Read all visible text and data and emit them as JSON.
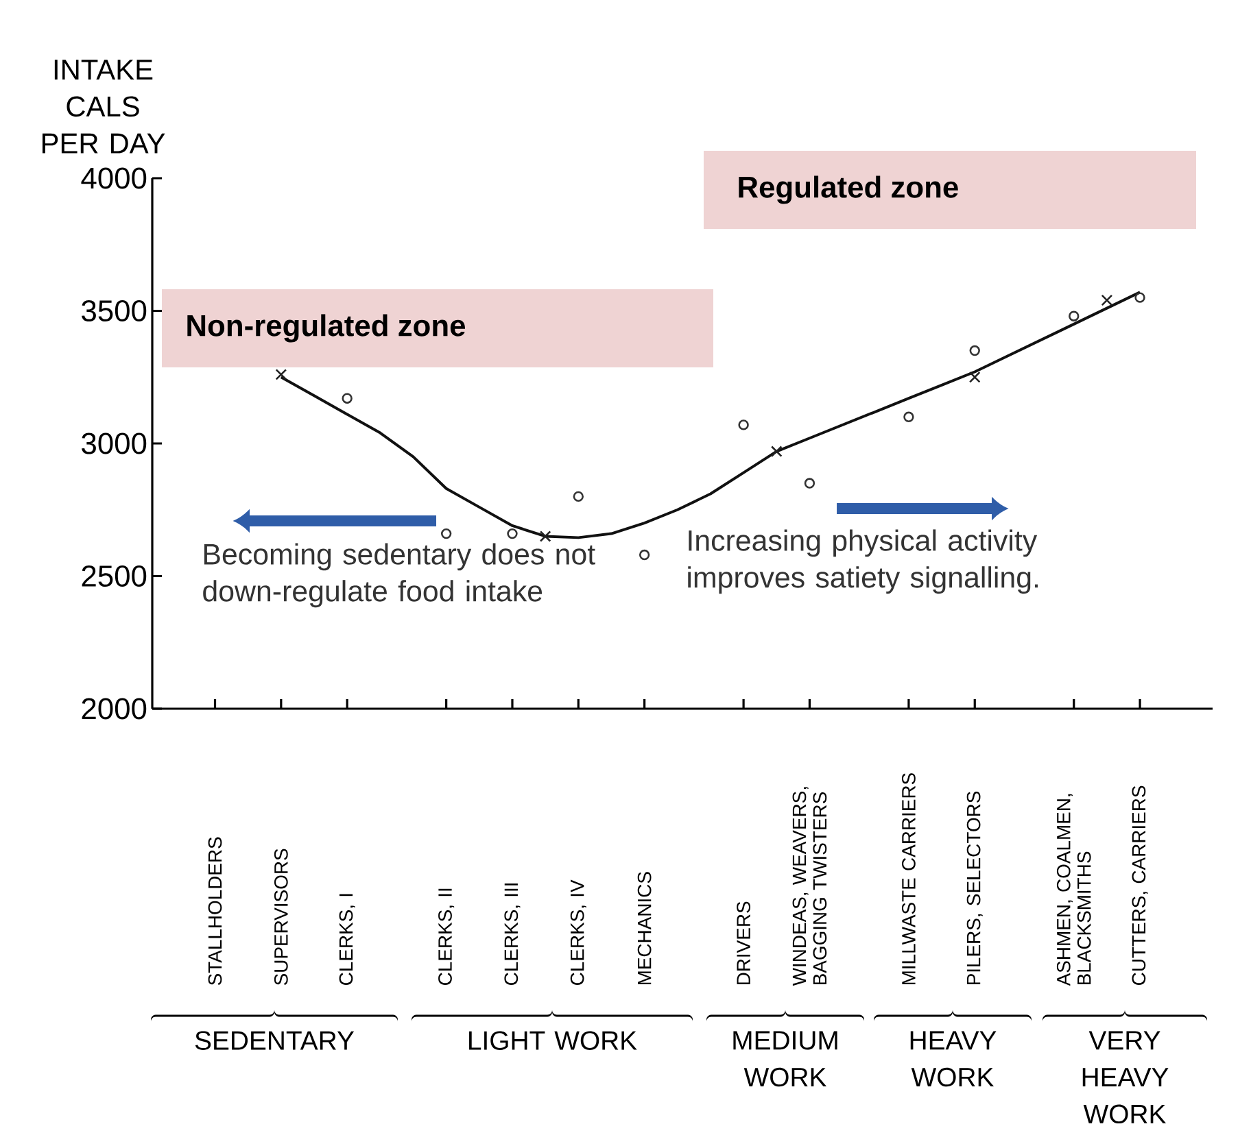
{
  "chart_data": {
    "type": "scatter",
    "ylabel": "INTAKE CALS PER DAY",
    "ylim": [
      2000,
      4000
    ],
    "yticks": [
      2000,
      2500,
      3000,
      3500,
      4000
    ],
    "categories": [
      "STALLHOLDERS",
      null,
      "SUPERVISORS",
      null,
      "CLERKS, I",
      null,
      null,
      "CLERKS, II",
      null,
      "CLERKS, III",
      null,
      "CLERKS, IV",
      null,
      "MECHANICS",
      null,
      null,
      "DRIVERS",
      null,
      "WINDEAS, WEAVERS, BAGGING TWISTERS",
      null,
      null,
      "MILLWASTE CARRIERS",
      null,
      "PILERS, SELECTORS",
      null,
      null,
      "ASHMEN, COALMEN, BLACKSMITHS",
      null,
      "CUTTERS, CARRIERS"
    ],
    "grid": false,
    "series": [
      {
        "marker": "circle",
        "color": "#333333",
        "values": [
          null,
          null,
          null,
          null,
          3170,
          null,
          null,
          2660,
          null,
          2660,
          null,
          2800,
          null,
          2580,
          null,
          null,
          3070,
          null,
          2850,
          null,
          null,
          3100,
          null,
          3350,
          null,
          null,
          3480,
          null,
          3550
        ]
      },
      {
        "marker": "cross",
        "color": "#222222",
        "values": [
          null,
          null,
          3260,
          null,
          null,
          null,
          null,
          null,
          null,
          null,
          2650,
          null,
          null,
          null,
          null,
          null,
          null,
          2970,
          null,
          null,
          null,
          null,
          null,
          3250,
          null,
          null,
          null,
          3540,
          null
        ]
      },
      {
        "type": "line",
        "marker": "none",
        "color": "#111111",
        "values": [
          null,
          null,
          3250,
          3180,
          3110,
          3040,
          2950,
          2830,
          2760,
          2690,
          2650,
          2645,
          2660,
          2700,
          2750,
          2810,
          2890,
          2970,
          3020,
          3070,
          3120,
          3170,
          3220,
          3270,
          3330,
          3390,
          3450,
          3510,
          3570
        ]
      }
    ],
    "annotations": [
      "Non-regulated zone",
      "Regulated zone",
      "Becoming sedentary does not down-regulate food intake",
      "Increasing physical activity improves satiety signalling.",
      "SEDENTARY",
      "LIGHT WORK",
      "MEDIUM WORK",
      "HEAVY WORK",
      "VERY HEAVY WORK"
    ]
  }
}
